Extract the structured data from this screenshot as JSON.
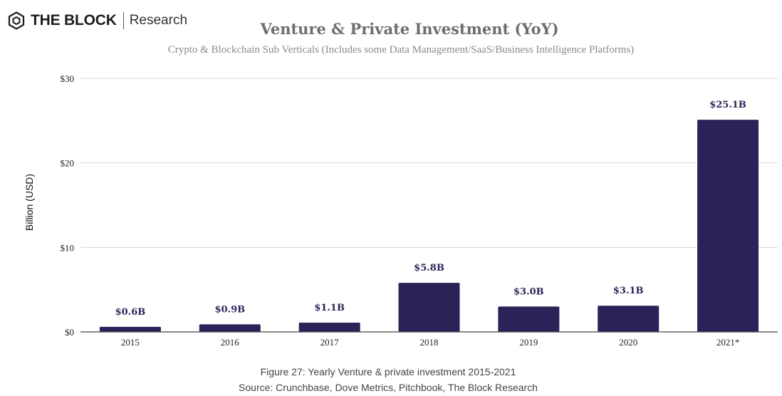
{
  "logo": {
    "brand": "THE BLOCK",
    "product": "Research"
  },
  "chart_data": {
    "type": "bar",
    "title": "Venture & Private Investment (YoY)",
    "subtitle": "Crypto & Blockchain Sub Verticals (Includes some Data Management/SaaS/Business Intelligence Platforms)",
    "xlabel": "",
    "ylabel": "Billion (USD)",
    "categories": [
      "2015",
      "2016",
      "2017",
      "2018",
      "2019",
      "2020",
      "2021*"
    ],
    "values": [
      0.6,
      0.9,
      1.1,
      5.8,
      3.0,
      3.1,
      25.1
    ],
    "data_labels": [
      "$0.6B",
      "$0.9B",
      "$1.1B",
      "$5.8B",
      "$3.0B",
      "$3.1B",
      "$25.1B"
    ],
    "ylim": [
      0,
      30
    ],
    "yticks": [
      0,
      10,
      20,
      30
    ],
    "ytick_labels": [
      "$0",
      "$10",
      "$20",
      "$30"
    ],
    "grid": true,
    "bar_color": "#2b2358"
  },
  "caption": {
    "figure": "Figure 27: Yearly Venture & private investment 2015-2021",
    "source": "Source:  Crunchbase, Dove Metrics, Pitchbook, The Block Research"
  }
}
